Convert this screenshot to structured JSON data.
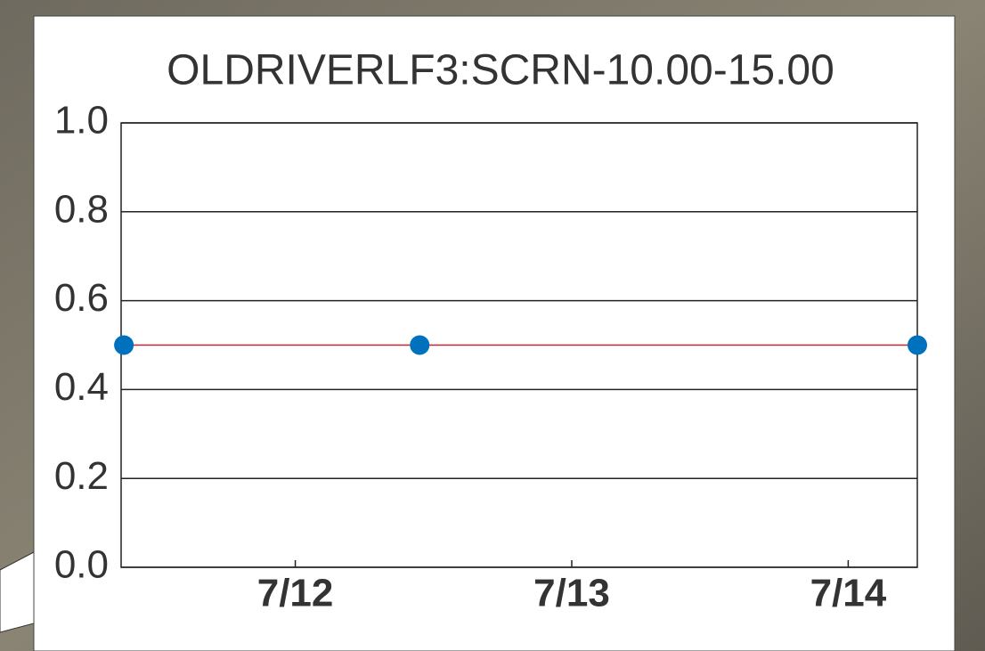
{
  "chart_data": {
    "type": "line",
    "title": "OLDRIVERLF3:SCRN-10.00-15.00",
    "x": [
      11.38,
      12.45,
      14.25
    ],
    "values": [
      0.5,
      0.5,
      0.5
    ],
    "marker_color": "#0072bd",
    "line_color": "#c0282d",
    "xlim": [
      11.37,
      14.25
    ],
    "xticks": [
      {
        "value": 12,
        "label": "7/12"
      },
      {
        "value": 13,
        "label": "7/13"
      },
      {
        "value": 14,
        "label": "7/14"
      }
    ],
    "ylim": [
      0,
      1
    ],
    "yticks": [
      {
        "value": 0,
        "label": "0.0"
      },
      0.2,
      0.4,
      0.6,
      0.8,
      {
        "value": 1,
        "label": "1.0"
      }
    ],
    "grid": true
  }
}
